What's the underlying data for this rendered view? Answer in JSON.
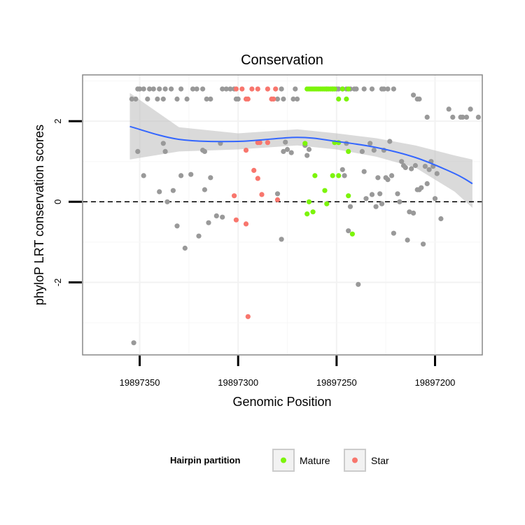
{
  "chart_data": {
    "type": "scatter",
    "title": "Conservation",
    "xlabel": "Genomic Position",
    "ylabel": "phyloP LRT conservation scores",
    "x_reversed": true,
    "xlim": [
      19897379,
      19897176
    ],
    "ylim": [
      -3.8,
      3.15
    ],
    "x_ticks": [
      {
        "value": 19897350,
        "label": "19897350"
      },
      {
        "value": 19897300,
        "label": "19897300"
      },
      {
        "value": 19897250,
        "label": "19897250"
      },
      {
        "value": 19897200,
        "label": "19897200"
      }
    ],
    "y_ticks": [
      {
        "value": 2,
        "label": "2"
      },
      {
        "value": 0,
        "label": "0"
      },
      {
        "value": -2,
        "label": "-2"
      }
    ],
    "reference_line": {
      "y": 0,
      "style": "dashed"
    },
    "legend": {
      "title": "Hairpin partition",
      "position": "bottom",
      "entries": [
        {
          "label": "Mature",
          "color": "#7CF40A"
        },
        {
          "label": "Star",
          "color": "#F8766D"
        }
      ]
    },
    "colors": {
      "other": "#999999",
      "Mature": "#7CF40A",
      "Star": "#F8766D",
      "smooth": "#3366FF",
      "ribbon": "#BBBBBB"
    },
    "smooth_line": {
      "x": [
        19897355,
        19897330,
        19897300,
        19897270,
        19897250,
        19897230,
        19897210,
        19897190,
        19897181
      ],
      "y": [
        1.87,
        1.55,
        1.5,
        1.6,
        1.5,
        1.35,
        1.1,
        0.7,
        0.45
      ]
    },
    "ribbon": {
      "x": [
        19897355,
        19897330,
        19897300,
        19897270,
        19897250,
        19897230,
        19897210,
        19897190,
        19897181
      ],
      "upper": [
        2.7,
        1.85,
        1.7,
        1.8,
        1.7,
        1.58,
        1.4,
        1.15,
        1.05
      ],
      "lower": [
        1.05,
        1.25,
        1.3,
        1.4,
        1.3,
        1.12,
        0.85,
        0.25,
        -0.15
      ]
    },
    "series": [
      {
        "name": "Other",
        "points": [
          [
            19897354,
            2.55
          ],
          [
            19897352,
            2.55
          ],
          [
            19897351,
            2.8
          ],
          [
            19897350,
            2.8
          ],
          [
            19897348,
            2.8
          ],
          [
            19897346,
            2.55
          ],
          [
            19897345,
            2.8
          ],
          [
            19897343,
            2.8
          ],
          [
            19897341,
            2.55
          ],
          [
            19897340,
            2.8
          ],
          [
            19897338,
            2.55
          ],
          [
            19897337,
            2.8
          ],
          [
            19897334,
            2.8
          ],
          [
            19897331,
            2.55
          ],
          [
            19897329,
            2.8
          ],
          [
            19897326,
            2.55
          ],
          [
            19897323,
            2.8
          ],
          [
            19897321,
            2.8
          ],
          [
            19897318,
            2.8
          ],
          [
            19897316,
            2.55
          ],
          [
            19897314,
            2.55
          ],
          [
            19897308,
            2.8
          ],
          [
            19897306,
            2.8
          ],
          [
            19897304,
            2.8
          ],
          [
            19897302,
            2.8
          ],
          [
            19897301,
            2.55
          ],
          [
            19897300,
            2.55
          ],
          [
            19897280,
            2.55
          ],
          [
            19897278,
            2.8
          ],
          [
            19897277,
            2.55
          ],
          [
            19897272,
            2.55
          ],
          [
            19897271,
            2.8
          ],
          [
            19897270,
            2.55
          ],
          [
            19897255,
            2.8
          ],
          [
            19897252,
            2.8
          ],
          [
            19897250,
            2.8
          ],
          [
            19897249,
            2.8
          ],
          [
            19897247,
            2.8
          ],
          [
            19897245,
            2.8
          ],
          [
            19897243,
            2.8
          ],
          [
            19897241,
            2.8
          ],
          [
            19897240,
            2.8
          ],
          [
            19897236,
            2.8
          ],
          [
            19897232,
            2.8
          ],
          [
            19897227,
            2.8
          ],
          [
            19897226,
            2.8
          ],
          [
            19897224,
            2.8
          ],
          [
            19897221,
            2.8
          ],
          [
            19897211,
            2.65
          ],
          [
            19897209,
            2.55
          ],
          [
            19897208,
            2.55
          ],
          [
            19897204,
            2.1
          ],
          [
            19897193,
            2.3
          ],
          [
            19897191,
            2.1
          ],
          [
            19897187,
            2.1
          ],
          [
            19897186,
            2.1
          ],
          [
            19897184,
            2.1
          ],
          [
            19897182,
            2.3
          ],
          [
            19897178,
            2.1
          ],
          [
            19897351,
            1.25
          ],
          [
            19897348,
            0.65
          ],
          [
            19897340,
            0.25
          ],
          [
            19897338,
            1.45
          ],
          [
            19897337,
            1.25
          ],
          [
            19897336,
            0.0
          ],
          [
            19897333,
            0.28
          ],
          [
            19897331,
            -0.6
          ],
          [
            19897329,
            0.65
          ],
          [
            19897327,
            -1.15
          ],
          [
            19897324,
            0.68
          ],
          [
            19897320,
            -0.85
          ],
          [
            19897318,
            1.28
          ],
          [
            19897317,
            1.25
          ],
          [
            19897317,
            0.3
          ],
          [
            19897315,
            -0.52
          ],
          [
            19897314,
            0.6
          ],
          [
            19897311,
            -0.35
          ],
          [
            19897309,
            1.45
          ],
          [
            19897308,
            -0.38
          ],
          [
            19897280,
            0.2
          ],
          [
            19897278,
            -0.93
          ],
          [
            19897277,
            1.25
          ],
          [
            19897276,
            1.48
          ],
          [
            19897275,
            1.3
          ],
          [
            19897273,
            1.22
          ],
          [
            19897266,
            1.4
          ],
          [
            19897265,
            1.15
          ],
          [
            19897264,
            1.3
          ],
          [
            19897247,
            0.8
          ],
          [
            19897246,
            0.65
          ],
          [
            19897245,
            1.45
          ],
          [
            19897244,
            -0.72
          ],
          [
            19897243,
            -0.12
          ],
          [
            19897239,
            -2.05
          ],
          [
            19897237,
            1.25
          ],
          [
            19897236,
            0.75
          ],
          [
            19897235,
            0.08
          ],
          [
            19897233,
            1.45
          ],
          [
            19897232,
            0.18
          ],
          [
            19897231,
            1.28
          ],
          [
            19897230,
            -0.12
          ],
          [
            19897229,
            0.6
          ],
          [
            19897228,
            0.2
          ],
          [
            19897227,
            -0.05
          ],
          [
            19897226,
            1.28
          ],
          [
            19897225,
            0.6
          ],
          [
            19897224,
            0.55
          ],
          [
            19897223,
            1.5
          ],
          [
            19897222,
            0.65
          ],
          [
            19897221,
            -0.78
          ],
          [
            19897219,
            0.2
          ],
          [
            19897218,
            0.0
          ],
          [
            19897217,
            1.0
          ],
          [
            19897216,
            0.9
          ],
          [
            19897215,
            0.85
          ],
          [
            19897214,
            -0.95
          ],
          [
            19897213,
            -0.25
          ],
          [
            19897212,
            0.82
          ],
          [
            19897211,
            -0.28
          ],
          [
            19897210,
            0.9
          ],
          [
            19897209,
            0.3
          ],
          [
            19897208,
            0.3
          ],
          [
            19897207,
            0.35
          ],
          [
            19897206,
            -1.05
          ],
          [
            19897205,
            0.88
          ],
          [
            19897204,
            0.45
          ],
          [
            19897203,
            0.8
          ],
          [
            19897202,
            1.0
          ],
          [
            19897201,
            0.88
          ],
          [
            19897200,
            0.08
          ],
          [
            19897199,
            0.7
          ],
          [
            19897197,
            -0.42
          ],
          [
            19897353,
            -3.5
          ]
        ]
      },
      {
        "name": "Mature",
        "points": [
          [
            19897265,
            2.8
          ],
          [
            19897264,
            2.8
          ],
          [
            19897263,
            2.8
          ],
          [
            19897262,
            2.8
          ],
          [
            19897261,
            2.8
          ],
          [
            19897260,
            2.8
          ],
          [
            19897259,
            2.8
          ],
          [
            19897258,
            2.8
          ],
          [
            19897257,
            2.8
          ],
          [
            19897256,
            2.8
          ],
          [
            19897255,
            2.8
          ],
          [
            19897254,
            2.8
          ],
          [
            19897253,
            2.8
          ],
          [
            19897252,
            2.8
          ],
          [
            19897251,
            2.8
          ],
          [
            19897249,
            2.55
          ],
          [
            19897245,
            2.55
          ],
          [
            19897244,
            2.8
          ],
          [
            19897247,
            2.8
          ],
          [
            19897251,
            1.47
          ],
          [
            19897249,
            1.47
          ],
          [
            19897244,
            1.25
          ],
          [
            19897266,
            1.45
          ],
          [
            19897261,
            0.65
          ],
          [
            19897252,
            0.65
          ],
          [
            19897249,
            0.65
          ],
          [
            19897256,
            0.28
          ],
          [
            19897244,
            0.15
          ],
          [
            19897264,
            0.0
          ],
          [
            19897255,
            -0.05
          ],
          [
            19897262,
            -0.25
          ],
          [
            19897265,
            -0.3
          ],
          [
            19897242,
            -0.8
          ]
        ]
      },
      {
        "name": "Star",
        "points": [
          [
            19897301,
            2.8
          ],
          [
            19897298,
            2.8
          ],
          [
            19897293,
            2.8
          ],
          [
            19897290,
            2.8
          ],
          [
            19897285,
            2.8
          ],
          [
            19897281,
            2.8
          ],
          [
            19897296,
            2.55
          ],
          [
            19897295,
            2.55
          ],
          [
            19897283,
            2.55
          ],
          [
            19897282,
            2.55
          ],
          [
            19897290,
            1.47
          ],
          [
            19897289,
            1.47
          ],
          [
            19897285,
            1.47
          ],
          [
            19897296,
            1.28
          ],
          [
            19897292,
            0.78
          ],
          [
            19897290,
            0.58
          ],
          [
            19897288,
            0.18
          ],
          [
            19897302,
            0.15
          ],
          [
            19897280,
            0.05
          ],
          [
            19897301,
            -0.45
          ],
          [
            19897296,
            -0.55
          ],
          [
            19897295,
            -2.85
          ]
        ]
      }
    ]
  }
}
